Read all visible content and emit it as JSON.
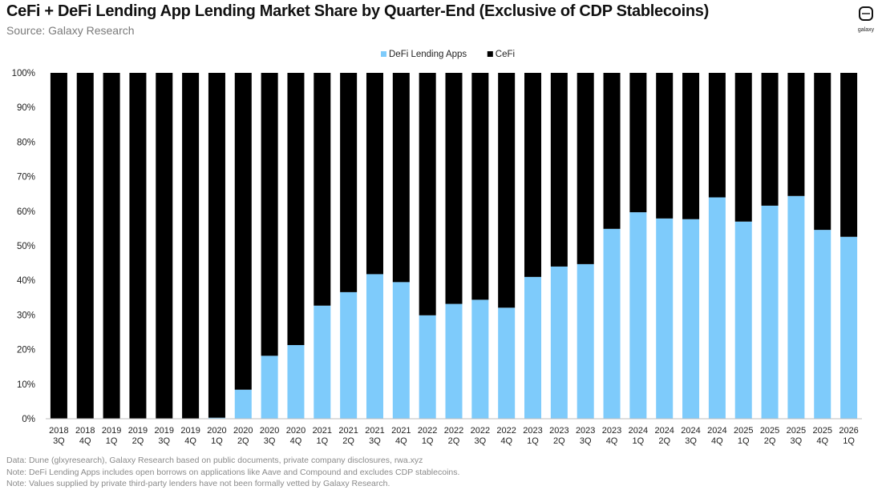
{
  "header": {
    "title": "CeFi + DeFi Lending App Lending Market Share by Quarter-End (Exclusive of CDP Stablecoins)",
    "subtitle": "Source: Galaxy Research",
    "logo_text": "galaxy"
  },
  "colors": {
    "defi": "#7ecbfb",
    "cefi": "#000000"
  },
  "footer": {
    "line1": "Data: Dune (glxyresearch), Galaxy Research based on public documents, private company disclosures, rwa.xyz",
    "line2": "Note: DeFi Lending Apps includes open borrows on applications like Aave and Compound and excludes CDP stablecoins.",
    "line3": "Note: Values supplied by private third-party lenders have not been formally vetted  by Galaxy Research."
  },
  "chart_data": {
    "type": "bar",
    "stacked": true,
    "legend_position": "top-center",
    "grid": false,
    "ylim": [
      0,
      100
    ],
    "yticks": [
      "0%",
      "10%",
      "20%",
      "30%",
      "40%",
      "50%",
      "60%",
      "70%",
      "80%",
      "90%",
      "100%"
    ],
    "categories": [
      [
        "2018",
        "3Q"
      ],
      [
        "2018",
        "4Q"
      ],
      [
        "2019",
        "1Q"
      ],
      [
        "2019",
        "2Q"
      ],
      [
        "2019",
        "3Q"
      ],
      [
        "2019",
        "4Q"
      ],
      [
        "2020",
        "1Q"
      ],
      [
        "2020",
        "2Q"
      ],
      [
        "2020",
        "3Q"
      ],
      [
        "2020",
        "4Q"
      ],
      [
        "2021",
        "1Q"
      ],
      [
        "2021",
        "2Q"
      ],
      [
        "2021",
        "3Q"
      ],
      [
        "2021",
        "4Q"
      ],
      [
        "2022",
        "1Q"
      ],
      [
        "2022",
        "2Q"
      ],
      [
        "2022",
        "3Q"
      ],
      [
        "2022",
        "4Q"
      ],
      [
        "2023",
        "1Q"
      ],
      [
        "2023",
        "2Q"
      ],
      [
        "2023",
        "3Q"
      ],
      [
        "2023",
        "4Q"
      ],
      [
        "2024",
        "1Q"
      ],
      [
        "2024",
        "2Q"
      ],
      [
        "2024",
        "3Q"
      ],
      [
        "2024",
        "4Q"
      ],
      [
        "2025",
        "1Q"
      ],
      [
        "2025",
        "2Q"
      ],
      [
        "2025",
        "3Q"
      ],
      [
        "2025",
        "4Q"
      ],
      [
        "2026",
        "1Q"
      ]
    ],
    "series": [
      {
        "name": "DeFi Lending Apps",
        "values": [
          0,
          0,
          0,
          0,
          0,
          0,
          0.3,
          8.4,
          18.2,
          21.3,
          32.7,
          36.6,
          41.8,
          39.5,
          29.9,
          33.2,
          34.4,
          32.1,
          41.0,
          44.0,
          44.7,
          54.9,
          59.7,
          57.9,
          57.7,
          64.0,
          57.0,
          61.6,
          64.4,
          54.6,
          52.6
        ]
      },
      {
        "name": "CeFi",
        "values": [
          100,
          100,
          100,
          100,
          100,
          100,
          99.7,
          91.6,
          81.8,
          78.7,
          67.3,
          63.4,
          58.2,
          60.5,
          70.1,
          66.8,
          65.6,
          67.9,
          59.0,
          56.0,
          55.3,
          45.1,
          40.3,
          42.1,
          42.3,
          36.0,
          43.0,
          38.4,
          35.6,
          45.4,
          47.4
        ]
      }
    ]
  }
}
